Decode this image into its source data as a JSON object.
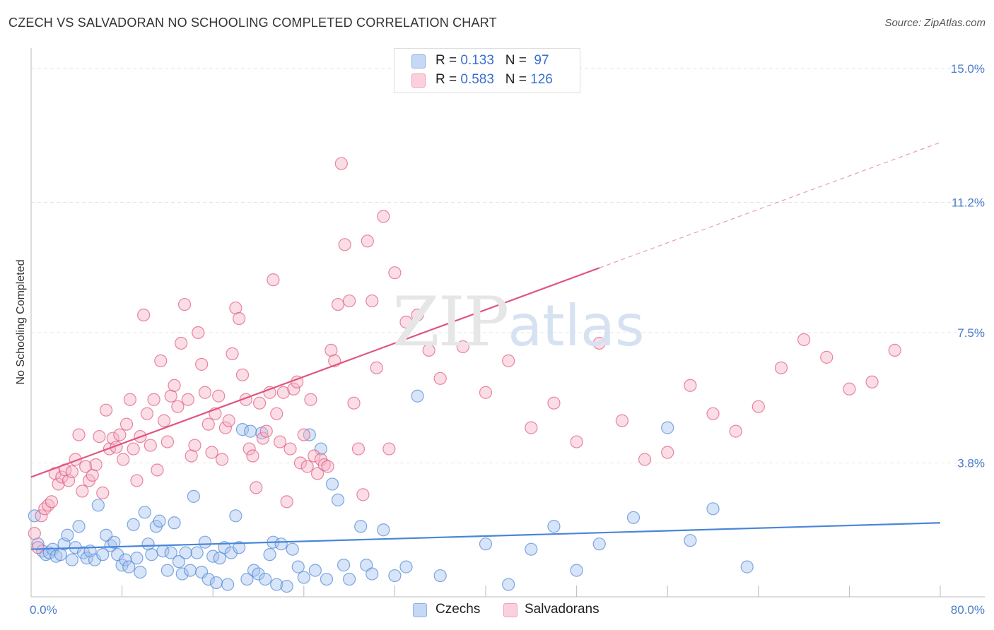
{
  "header": {
    "title": "CZECH VS SALVADORAN NO SCHOOLING COMPLETED CORRELATION CHART",
    "source": "Source: ZipAtlas.com"
  },
  "watermark": {
    "zip": "ZIP",
    "atlas": "atlas"
  },
  "legend": {
    "rows": [
      {
        "r_label": "R = ",
        "r_value": "0.133",
        "n_label": "N = ",
        "n_value": "97",
        "color": "#a8c4ee"
      },
      {
        "r_label": "R = ",
        "r_value": "0.583",
        "n_label": "N = ",
        "n_value": "126",
        "color": "#f5b3c6"
      }
    ],
    "bottom": [
      {
        "name": "Czechs",
        "color": "#a8c4ee"
      },
      {
        "name": "Salvadorans",
        "color": "#f5b3c6"
      }
    ]
  },
  "chart_data": {
    "type": "scatter",
    "title": "CZECH VS SALVADORAN NO SCHOOLING COMPLETED CORRELATION CHART",
    "ylabel": "No Schooling Completed",
    "xlabel": "",
    "xlim": [
      0,
      80
    ],
    "ylim": [
      0,
      15.5
    ],
    "x_tick_labels": [
      "0.0%",
      "80.0%"
    ],
    "y_ticks": [
      3.8,
      7.5,
      11.2,
      15.0
    ],
    "y_tick_labels": [
      "3.8%",
      "7.5%",
      "11.2%",
      "15.0%"
    ],
    "grid": true,
    "legend_position": "top-center",
    "series": [
      {
        "name": "Czechs",
        "color": "#4a86d8",
        "fill": "#a8c4ee",
        "trend": {
          "x": [
            0,
            80
          ],
          "y": [
            1.35,
            2.1
          ],
          "solid_to": 80
        },
        "points": [
          [
            0.3,
            2.3
          ],
          [
            0.6,
            1.5
          ],
          [
            1,
            1.3
          ],
          [
            1.3,
            1.2
          ],
          [
            1.6,
            1.25
          ],
          [
            1.9,
            1.35
          ],
          [
            2.2,
            1.15
          ],
          [
            2.6,
            1.2
          ],
          [
            2.9,
            1.5
          ],
          [
            3.2,
            1.75
          ],
          [
            3.6,
            1.05
          ],
          [
            3.9,
            1.4
          ],
          [
            4.2,
            2.0
          ],
          [
            4.6,
            1.25
          ],
          [
            4.9,
            1.1
          ],
          [
            5.2,
            1.3
          ],
          [
            5.6,
            1.05
          ],
          [
            5.9,
            2.6
          ],
          [
            6.3,
            1.2
          ],
          [
            6.6,
            1.75
          ],
          [
            7,
            1.45
          ],
          [
            7.3,
            1.55
          ],
          [
            7.6,
            1.2
          ],
          [
            8,
            0.9
          ],
          [
            8.3,
            1.05
          ],
          [
            8.6,
            0.85
          ],
          [
            9,
            2.05
          ],
          [
            9.3,
            1.1
          ],
          [
            9.6,
            0.7
          ],
          [
            10,
            2.4
          ],
          [
            10.3,
            1.5
          ],
          [
            10.6,
            1.2
          ],
          [
            11,
            2.0
          ],
          [
            11.3,
            2.15
          ],
          [
            11.6,
            1.3
          ],
          [
            12,
            0.75
          ],
          [
            12.3,
            1.25
          ],
          [
            12.6,
            2.1
          ],
          [
            13,
            1.0
          ],
          [
            13.3,
            0.65
          ],
          [
            13.6,
            1.25
          ],
          [
            14,
            0.75
          ],
          [
            14.3,
            2.85
          ],
          [
            14.6,
            1.25
          ],
          [
            15,
            0.7
          ],
          [
            15.3,
            1.55
          ],
          [
            15.6,
            0.5
          ],
          [
            16,
            1.15
          ],
          [
            16.3,
            0.4
          ],
          [
            16.6,
            1.1
          ],
          [
            17,
            1.4
          ],
          [
            17.3,
            0.35
          ],
          [
            17.6,
            1.25
          ],
          [
            18,
            2.3
          ],
          [
            18.3,
            1.4
          ],
          [
            18.6,
            4.75
          ],
          [
            19,
            0.5
          ],
          [
            19.3,
            4.7
          ],
          [
            19.6,
            0.75
          ],
          [
            20,
            0.65
          ],
          [
            20.3,
            4.65
          ],
          [
            20.6,
            0.5
          ],
          [
            21,
            1.2
          ],
          [
            21.3,
            1.55
          ],
          [
            21.6,
            0.35
          ],
          [
            22,
            1.5
          ],
          [
            22.5,
            0.3
          ],
          [
            23,
            1.35
          ],
          [
            23.5,
            0.85
          ],
          [
            24,
            0.55
          ],
          [
            24.5,
            4.6
          ],
          [
            25,
            0.75
          ],
          [
            25.5,
            4.2
          ],
          [
            26,
            0.5
          ],
          [
            26.5,
            3.2
          ],
          [
            27,
            2.75
          ],
          [
            27.5,
            0.9
          ],
          [
            28,
            0.5
          ],
          [
            29,
            2.0
          ],
          [
            29.5,
            0.9
          ],
          [
            30,
            0.65
          ],
          [
            31,
            1.9
          ],
          [
            32,
            0.6
          ],
          [
            33,
            0.85
          ],
          [
            34,
            5.7
          ],
          [
            36,
            0.6
          ],
          [
            40,
            1.5
          ],
          [
            42,
            0.35
          ],
          [
            44,
            1.35
          ],
          [
            46,
            2.0
          ],
          [
            48,
            0.75
          ],
          [
            50,
            1.5
          ],
          [
            53,
            2.25
          ],
          [
            56,
            4.8
          ],
          [
            58,
            1.6
          ],
          [
            60,
            2.5
          ],
          [
            63,
            0.85
          ]
        ]
      },
      {
        "name": "Salvadorans",
        "color": "#e0557f",
        "fill": "#f5b3c6",
        "trend": {
          "x": [
            0,
            80
          ],
          "y": [
            3.4,
            12.9
          ],
          "solid_to": 50
        },
        "points": [
          [
            0.3,
            1.8
          ],
          [
            0.6,
            1.4
          ],
          [
            0.9,
            2.3
          ],
          [
            1.2,
            2.5
          ],
          [
            1.5,
            2.6
          ],
          [
            1.8,
            2.7
          ],
          [
            2.1,
            3.5
          ],
          [
            2.4,
            3.2
          ],
          [
            2.7,
            3.4
          ],
          [
            3,
            3.6
          ],
          [
            3.3,
            3.3
          ],
          [
            3.6,
            3.55
          ],
          [
            3.9,
            3.9
          ],
          [
            4.2,
            4.6
          ],
          [
            4.5,
            3.0
          ],
          [
            4.8,
            3.7
          ],
          [
            5.1,
            3.3
          ],
          [
            5.4,
            3.45
          ],
          [
            5.7,
            3.75
          ],
          [
            6,
            4.55
          ],
          [
            6.3,
            2.95
          ],
          [
            6.6,
            5.3
          ],
          [
            6.9,
            4.2
          ],
          [
            7.2,
            4.5
          ],
          [
            7.5,
            4.25
          ],
          [
            7.8,
            4.6
          ],
          [
            8.1,
            3.9
          ],
          [
            8.4,
            4.9
          ],
          [
            8.7,
            5.6
          ],
          [
            9,
            4.2
          ],
          [
            9.3,
            3.3
          ],
          [
            9.6,
            4.55
          ],
          [
            9.9,
            8.0
          ],
          [
            10.2,
            5.2
          ],
          [
            10.5,
            4.3
          ],
          [
            10.8,
            5.6
          ],
          [
            11.1,
            3.6
          ],
          [
            11.4,
            6.7
          ],
          [
            11.7,
            5.0
          ],
          [
            12,
            4.4
          ],
          [
            12.3,
            5.7
          ],
          [
            12.6,
            6.0
          ],
          [
            12.9,
            5.4
          ],
          [
            13.2,
            7.2
          ],
          [
            13.5,
            8.3
          ],
          [
            13.8,
            5.6
          ],
          [
            14.1,
            4.0
          ],
          [
            14.4,
            4.3
          ],
          [
            14.7,
            7.5
          ],
          [
            15,
            6.6
          ],
          [
            15.3,
            5.8
          ],
          [
            15.6,
            4.9
          ],
          [
            15.9,
            4.1
          ],
          [
            16.2,
            5.2
          ],
          [
            16.5,
            5.7
          ],
          [
            16.8,
            3.9
          ],
          [
            17.1,
            4.8
          ],
          [
            17.4,
            5.0
          ],
          [
            17.7,
            6.9
          ],
          [
            18,
            8.2
          ],
          [
            18.3,
            7.9
          ],
          [
            18.6,
            6.3
          ],
          [
            18.9,
            5.6
          ],
          [
            19.2,
            4.2
          ],
          [
            19.5,
            4.0
          ],
          [
            19.8,
            3.1
          ],
          [
            20.1,
            5.5
          ],
          [
            20.4,
            4.5
          ],
          [
            20.7,
            4.7
          ],
          [
            21,
            5.8
          ],
          [
            21.3,
            9.0
          ],
          [
            21.6,
            5.2
          ],
          [
            21.9,
            4.4
          ],
          [
            22.2,
            5.8
          ],
          [
            22.5,
            2.7
          ],
          [
            22.8,
            4.2
          ],
          [
            23.1,
            5.9
          ],
          [
            23.4,
            6.1
          ],
          [
            23.7,
            3.8
          ],
          [
            24,
            4.6
          ],
          [
            24.3,
            3.7
          ],
          [
            24.6,
            5.6
          ],
          [
            24.9,
            4.0
          ],
          [
            25.2,
            3.5
          ],
          [
            25.5,
            3.9
          ],
          [
            25.8,
            3.75
          ],
          [
            26.1,
            3.7
          ],
          [
            26.4,
            7.0
          ],
          [
            26.7,
            6.7
          ],
          [
            27,
            8.3
          ],
          [
            27.3,
            12.3
          ],
          [
            27.6,
            10.0
          ],
          [
            28,
            8.4
          ],
          [
            28.4,
            5.5
          ],
          [
            28.8,
            4.2
          ],
          [
            29.2,
            2.9
          ],
          [
            29.6,
            10.1
          ],
          [
            30,
            8.4
          ],
          [
            30.4,
            6.5
          ],
          [
            31,
            10.8
          ],
          [
            31.5,
            4.2
          ],
          [
            32,
            9.2
          ],
          [
            33,
            7.8
          ],
          [
            34,
            8.0
          ],
          [
            35,
            7.0
          ],
          [
            36,
            6.2
          ],
          [
            38,
            7.1
          ],
          [
            40,
            5.8
          ],
          [
            42,
            6.7
          ],
          [
            44,
            4.8
          ],
          [
            46,
            5.5
          ],
          [
            48,
            4.4
          ],
          [
            50,
            7.2
          ],
          [
            52,
            5.0
          ],
          [
            54,
            3.9
          ],
          [
            56,
            4.1
          ],
          [
            58,
            6.0
          ],
          [
            60,
            5.2
          ],
          [
            62,
            4.7
          ],
          [
            64,
            5.4
          ],
          [
            66,
            6.5
          ],
          [
            68,
            7.3
          ],
          [
            70,
            6.8
          ],
          [
            72,
            5.9
          ],
          [
            74,
            6.1
          ],
          [
            76,
            7.0
          ]
        ]
      }
    ]
  }
}
